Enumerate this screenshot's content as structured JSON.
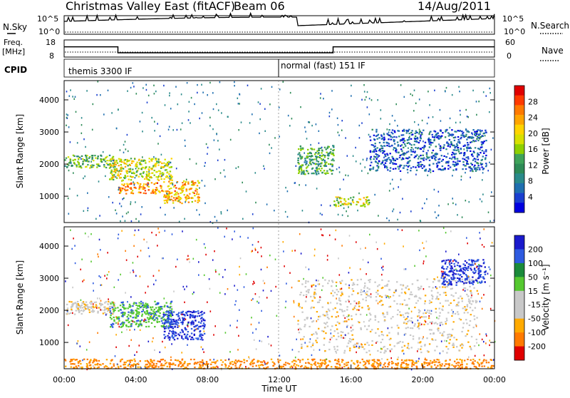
{
  "header": {
    "title": "Christmas Valley East (fitACF)",
    "beam": "Beam 06",
    "date": "14/Aug/2011"
  },
  "status_panels": {
    "nsky_label": "N.Sky",
    "nsky_ticks": [
      "10^5",
      "10^0"
    ],
    "nsearch_label": "N.Search",
    "nsearch_ticks": [
      "10^5",
      "10^0"
    ],
    "freq_label_1": "Freq.",
    "freq_label_2": "[MHz]",
    "freq_ticks": [
      "18",
      "8"
    ],
    "nave_label": "Nave",
    "nave_ticks": [
      "60",
      "0"
    ],
    "cpid_label": "CPID",
    "cpid_segments": [
      {
        "name": "themis 3300 IF",
        "start_hour": 0
      },
      {
        "name": "normal (fast) 151 IF",
        "start_hour": 12
      }
    ],
    "freq_steps": [
      {
        "start_hour": 0,
        "end_hour": 3,
        "mhz": 14
      },
      {
        "start_hour": 3,
        "end_hour": 15,
        "mhz": 10.5
      },
      {
        "start_hour": 15,
        "end_hour": 24,
        "mhz": 14
      }
    ]
  },
  "chart_data": [
    {
      "type": "heatmap",
      "panel": "power",
      "ylabel": "Slant Range [km]",
      "ylim": [
        180,
        4600
      ],
      "yticks": [
        "4000",
        "3000",
        "2000",
        "1000"
      ],
      "colorbar_label": "Power [dB]",
      "colorbar_ticks": [
        "28",
        "24",
        "20",
        "16",
        "12",
        "8",
        "4"
      ],
      "colorbar_colors": [
        "#e00000",
        "#ff3a00",
        "#ff7a00",
        "#ffa500",
        "#ffd400",
        "#d8e000",
        "#8ed000",
        "#3fa35a",
        "#2e8b57",
        "#2a8a8a",
        "#1f6fb0",
        "#1a3fd0",
        "#0000e0"
      ],
      "clusters": [
        {
          "t0": 0.0,
          "t1": 2.8,
          "r0": 1900,
          "r1": 2300,
          "value": 14
        },
        {
          "t0": 2.5,
          "t1": 6.0,
          "r0": 1500,
          "r1": 2200,
          "value": 18
        },
        {
          "t0": 3.0,
          "t1": 5.5,
          "r0": 1100,
          "r1": 1450,
          "value": 24
        },
        {
          "t0": 5.5,
          "t1": 7.5,
          "r0": 800,
          "r1": 1500,
          "value": 22
        },
        {
          "t0": 13.0,
          "t1": 15.0,
          "r0": 1700,
          "r1": 2600,
          "value": 12
        },
        {
          "t0": 15.0,
          "t1": 17.0,
          "r0": 700,
          "r1": 1000,
          "value": 18
        },
        {
          "t0": 17.0,
          "t1": 23.5,
          "r0": 1800,
          "r1": 3100,
          "value": 6
        }
      ]
    },
    {
      "type": "heatmap",
      "panel": "velocity",
      "xlabel": "Time UT",
      "ylabel": "Slant Range [km]",
      "ylim": [
        180,
        4600
      ],
      "yticks": [
        "4000",
        "3000",
        "2000",
        "1000"
      ],
      "xticks": [
        "00:00",
        "04:00",
        "08:00",
        "12:00",
        "16:00",
        "20:00",
        "00:00"
      ],
      "colorbar_label": "Velocity [m s⁻¹]",
      "colorbar_ticks": [
        "200",
        "100",
        "50",
        "15",
        "-15",
        "-50",
        "-100",
        "-200"
      ],
      "colorbar_colors": [
        "#1a1acc",
        "#2e5be0",
        "#1a8a3a",
        "#55c830",
        "#c8c8c8",
        "#c8c8c8",
        "#ffaa00",
        "#ff7a00",
        "#e00000"
      ],
      "clusters": [
        {
          "t0": 0.0,
          "t1": 2.8,
          "r0": 1900,
          "r1": 2300,
          "value": 0
        },
        {
          "t0": 2.5,
          "t1": 6.0,
          "r0": 1500,
          "r1": 2300,
          "value": 60
        },
        {
          "t0": 5.5,
          "t1": 7.8,
          "r0": 1100,
          "r1": 2000,
          "value": 150
        },
        {
          "t0": 13.0,
          "t1": 23.0,
          "r0": 700,
          "r1": 3000,
          "value": 0
        },
        {
          "t0": 21.0,
          "t1": 23.5,
          "r0": 2800,
          "r1": 3600,
          "value": 150
        },
        {
          "t0": 0.0,
          "t1": 24.0,
          "r0": 200,
          "r1": 500,
          "value": -60
        }
      ]
    }
  ]
}
